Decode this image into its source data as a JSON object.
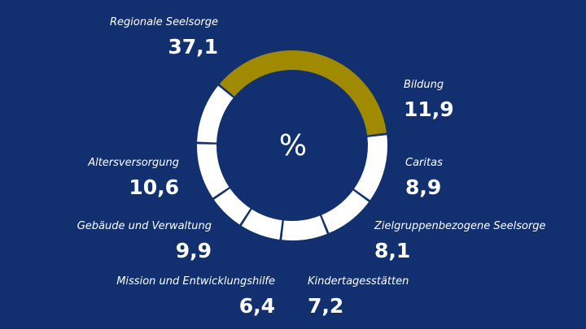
{
  "chart_data": {
    "type": "pie",
    "variant": "donut",
    "unit_label": "%",
    "categories": [
      "Regionale Seelsorge",
      "Bildung",
      "Caritas",
      "Zielgruppenbezogene Seelsorge",
      "Kindertagesstätten",
      "Mission und Entwicklungshilfe",
      "Gebäude und Verwaltung",
      "Altersversorgung"
    ],
    "values": [
      37.1,
      11.9,
      8.9,
      8.1,
      7.2,
      6.4,
      9.9,
      10.6
    ],
    "value_labels": [
      "37,1",
      "11,9",
      "8,9",
      "8,1",
      "7,2",
      "6,4",
      "9,9",
      "10,6"
    ],
    "colors": {
      "highlight": "#a08a00",
      "segment": "#ffffff",
      "background": "#12306f"
    },
    "legend": "none"
  }
}
